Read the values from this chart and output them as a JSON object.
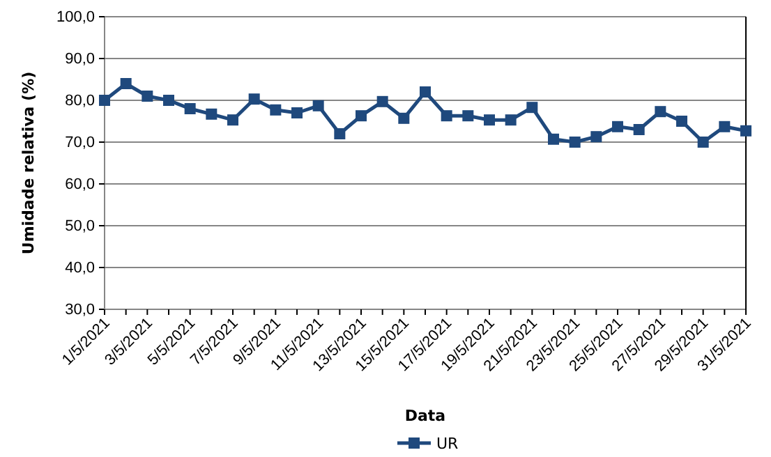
{
  "chart_data": {
    "type": "line",
    "xlabel": "Data",
    "ylabel": "Umidade relativa  (%)",
    "categories": [
      "1/5/2021",
      null,
      "3/5/2021",
      null,
      "5/5/2021",
      null,
      "7/5/2021",
      null,
      "9/5/2021",
      null,
      "11/5/2021",
      null,
      "13/5/2021",
      null,
      "15/5/2021",
      null,
      "17/5/2021",
      null,
      "19/5/2021",
      null,
      "21/5/2021",
      null,
      "23/5/2021",
      null,
      "25/5/2021",
      null,
      "27/5/2021",
      null,
      "29/5/2021",
      null,
      "31/5/2021"
    ],
    "series": [
      {
        "name": "UR",
        "color": "#1f497d",
        "values": [
          80.0,
          84.0,
          81.0,
          80.0,
          78.0,
          76.7,
          75.3,
          80.3,
          77.7,
          77.0,
          78.7,
          72.0,
          76.3,
          79.7,
          75.7,
          82.0,
          76.3,
          76.3,
          75.3,
          75.3,
          78.3,
          70.7,
          70.0,
          71.3,
          73.7,
          73.0,
          77.3,
          75.0,
          70.0,
          73.7,
          72.7
        ]
      }
    ],
    "ylim": [
      30,
      100
    ],
    "yticks": [
      {
        "value": 30,
        "label": "30,0"
      },
      {
        "value": 40,
        "label": "40,0"
      },
      {
        "value": 50,
        "label": "50,0"
      },
      {
        "value": 60,
        "label": "60,0"
      },
      {
        "value": 70,
        "label": "70,0"
      },
      {
        "value": 80,
        "label": "80,0"
      },
      {
        "value": 90,
        "label": "90,0"
      },
      {
        "value": 100,
        "label": "100,0"
      }
    ],
    "grid": "y",
    "legend": "bottom",
    "marker": "square",
    "line_style": "solid"
  }
}
